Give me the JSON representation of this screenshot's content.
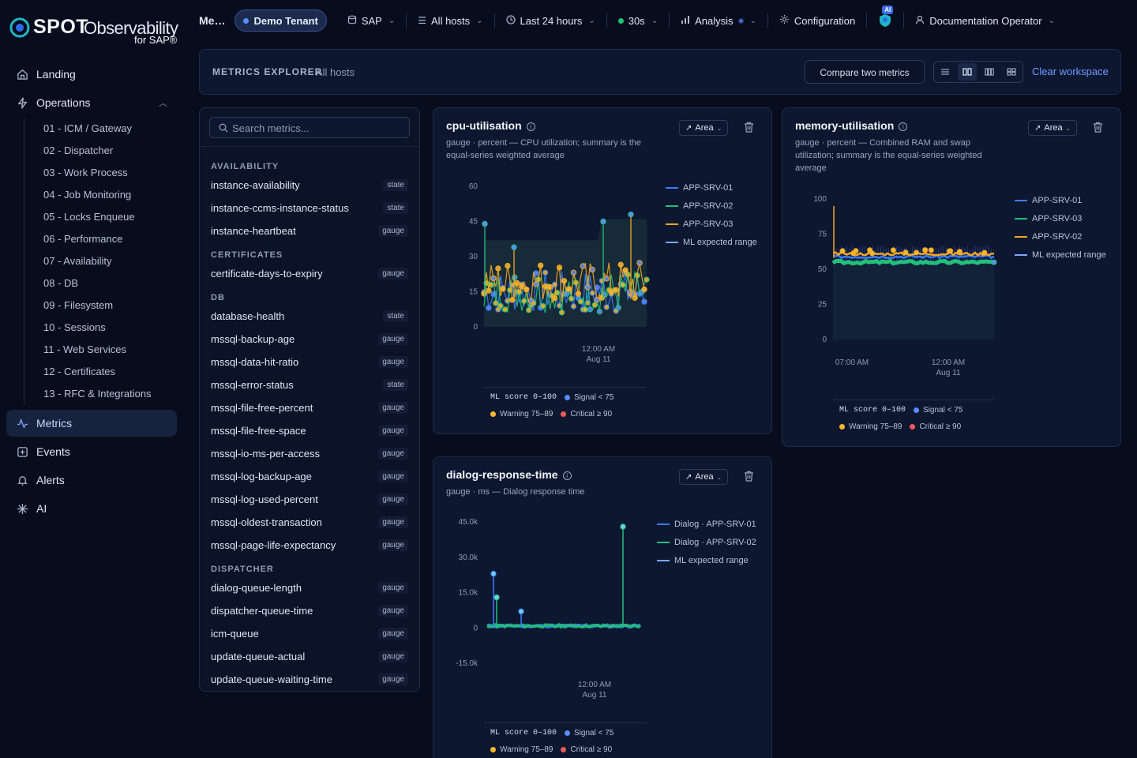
{
  "brand": {
    "spot": "SPOT",
    "obs": "Observability",
    "sap": "for SAP®"
  },
  "sidebar": {
    "items": [
      {
        "label": "Landing",
        "icon": "home-icon"
      },
      {
        "label": "Operations",
        "icon": "bolt-icon"
      }
    ],
    "operations": [
      "01 - ICM / Gateway",
      "02 - Dispatcher",
      "03 - Work Process",
      "04 - Job Monitoring",
      "05 - Locks Enqueue",
      "06 - Performance",
      "07 - Availability",
      "08 - DB",
      "09 - Filesystem",
      "10 - Sessions",
      "11 - Web Services",
      "12 - Certificates",
      "13 - RFC & Integrations"
    ],
    "bottom": [
      {
        "label": "Metrics",
        "icon": "metrics-icon"
      },
      {
        "label": "Events",
        "icon": "events-icon"
      },
      {
        "label": "Alerts",
        "icon": "bell-icon"
      },
      {
        "label": "AI",
        "icon": "sparkle-icon"
      }
    ]
  },
  "topbar": {
    "title": "Me…",
    "tenant": "Demo Tenant",
    "system": "SAP",
    "hosts": "All hosts",
    "range": "Last 24 hours",
    "refresh": "30s",
    "analysis": "Analysis",
    "config": "Configuration",
    "ai_badge": "AI",
    "user": "Documentation Operator"
  },
  "explorer": {
    "title": "METRICS EXPLORER",
    "scope": "All hosts",
    "compare": "Compare two metrics",
    "clear": "Clear workspace"
  },
  "metrics_list": {
    "search_placeholder": "Search metrics...",
    "groups": [
      {
        "name": "AVAILABILITY",
        "items": [
          {
            "name": "instance-availability",
            "kind": "state"
          },
          {
            "name": "instance-ccms-instance-status",
            "kind": "state"
          },
          {
            "name": "instance-heartbeat",
            "kind": "gauge"
          }
        ]
      },
      {
        "name": "CERTIFICATES",
        "items": [
          {
            "name": "certificate-days-to-expiry",
            "kind": "gauge"
          }
        ]
      },
      {
        "name": "DB",
        "items": [
          {
            "name": "database-health",
            "kind": "state"
          },
          {
            "name": "mssql-backup-age",
            "kind": "gauge"
          },
          {
            "name": "mssql-data-hit-ratio",
            "kind": "gauge"
          },
          {
            "name": "mssql-error-status",
            "kind": "state"
          },
          {
            "name": "mssql-file-free-percent",
            "kind": "gauge"
          },
          {
            "name": "mssql-file-free-space",
            "kind": "gauge"
          },
          {
            "name": "mssql-io-ms-per-access",
            "kind": "gauge"
          },
          {
            "name": "mssql-log-backup-age",
            "kind": "gauge"
          },
          {
            "name": "mssql-log-used-percent",
            "kind": "gauge"
          },
          {
            "name": "mssql-oldest-transaction",
            "kind": "gauge"
          },
          {
            "name": "mssql-page-life-expectancy",
            "kind": "gauge"
          }
        ]
      },
      {
        "name": "DISPATCHER",
        "items": [
          {
            "name": "dialog-queue-length",
            "kind": "gauge"
          },
          {
            "name": "dispatcher-queue-time",
            "kind": "gauge"
          },
          {
            "name": "icm-queue",
            "kind": "gauge"
          },
          {
            "name": "update-queue-actual",
            "kind": "gauge"
          },
          {
            "name": "update-queue-waiting-time",
            "kind": "gauge"
          }
        ]
      }
    ]
  },
  "cards": [
    {
      "title": "cpu-utilisation",
      "desc": "gauge · percent — CPU utilization; summary is the equal-series weighted average",
      "chart_type": "Area"
    },
    {
      "title": "memory-utilisation",
      "desc": "gauge · percent — Combined RAM and swap utilization; summary is the equal-series weighted average",
      "chart_type": "Area"
    },
    {
      "title": "dialog-response-time",
      "desc": "gauge · ms — Dialog response time",
      "chart_type": "Area"
    }
  ],
  "ml_legend": {
    "score": "ML score 0–100",
    "signal": "Signal < 75",
    "warning": "Warning 75–89",
    "critical": "Critical ≥ 90"
  },
  "colors": {
    "srv01": "#3b7bff",
    "srv02": "#22c07a",
    "srv03": "#f5a623",
    "ml": "#7aa6ff",
    "signal": "#5b8cff",
    "warning": "#f5b82e",
    "critical": "#f05a5a",
    "accent": "#6d9dff"
  },
  "chart_data": [
    {
      "type": "area",
      "title": "cpu-utilisation",
      "ylim": [
        0,
        60
      ],
      "yticks": [
        60,
        45,
        30,
        15,
        0
      ],
      "xticks": [
        [
          "12:00 AM",
          "Aug 11"
        ]
      ],
      "series": [
        {
          "name": "APP-SRV-01"
        },
        {
          "name": "APP-SRV-02"
        },
        {
          "name": "APP-SRV-03"
        },
        {
          "name": "ML expected range"
        }
      ],
      "spikes": [
        44,
        34,
        45,
        48
      ]
    },
    {
      "type": "area",
      "title": "memory-utilisation",
      "ylim": [
        0,
        100
      ],
      "yticks": [
        100,
        75,
        50,
        25,
        0
      ],
      "xticks": [
        [
          "07:00 AM",
          ""
        ],
        [
          "12:00 AM",
          "Aug 11"
        ]
      ],
      "series": [
        {
          "name": "APP-SRV-01"
        },
        {
          "name": "APP-SRV-03"
        },
        {
          "name": "APP-SRV-02"
        },
        {
          "name": "ML expected range"
        }
      ],
      "levels": {
        "srv01": 59,
        "srv02": 55,
        "srv03": 61
      },
      "initial_spike": 95
    },
    {
      "type": "area",
      "title": "dialog-response-time",
      "ylim": [
        -15000,
        45000
      ],
      "yticks": [
        "45.0k",
        "30.0k",
        "15.0k",
        "0",
        "-15.0k"
      ],
      "xticks": [
        [
          "12:00 AM",
          "Aug 11"
        ]
      ],
      "series": [
        {
          "name": "Dialog · APP-SRV-01"
        },
        {
          "name": "Dialog · APP-SRV-02"
        },
        {
          "name": "ML expected range"
        }
      ],
      "spikes": [
        13000,
        7000,
        23000,
        43000
      ]
    }
  ]
}
